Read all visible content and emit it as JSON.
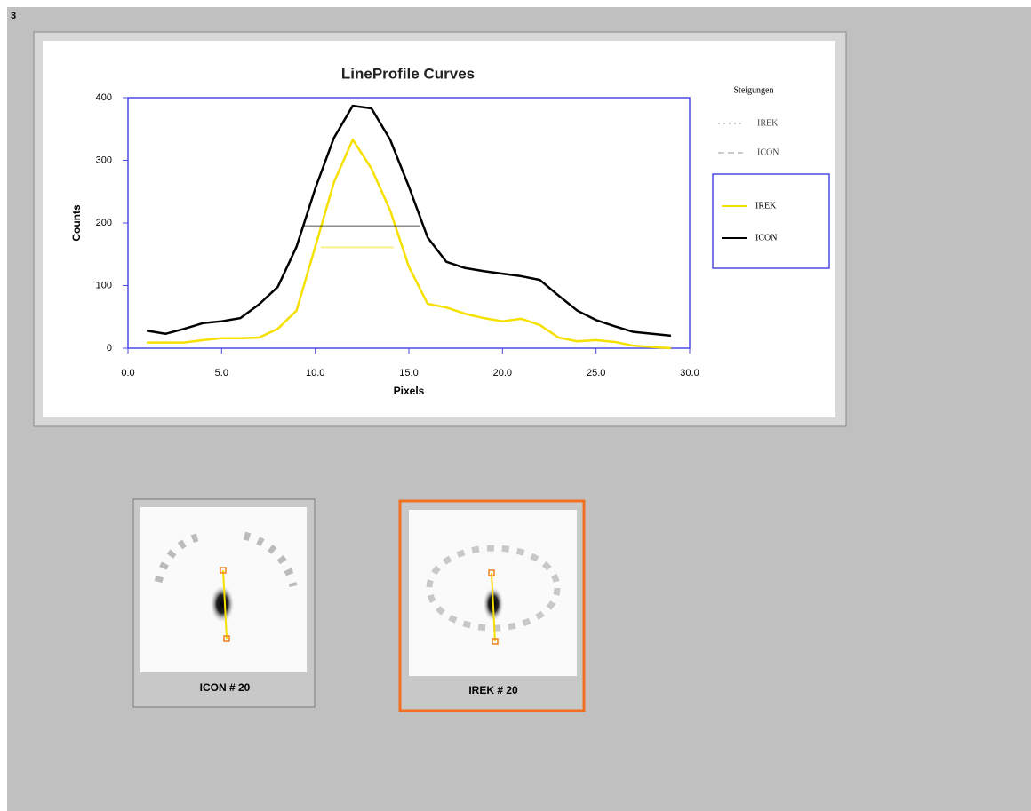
{
  "page_number": "3",
  "chart_data": {
    "type": "line",
    "title": "LineProfile Curves",
    "x_label": "Pixels",
    "y_label": "Counts",
    "x": [
      1,
      2,
      3,
      4,
      5,
      6,
      7,
      8,
      9,
      10,
      11,
      12,
      13,
      14,
      15,
      16,
      17,
      18,
      19,
      20,
      21,
      22,
      23,
      24,
      25,
      26,
      27,
      28,
      29
    ],
    "series": [
      {
        "name": "IREK",
        "color": "#f5e000",
        "values": [
          9,
          9,
          9,
          13,
          16,
          16,
          17,
          31,
          60,
          162,
          265,
          333,
          287,
          220,
          130,
          71,
          65,
          55,
          48,
          43,
          47,
          37,
          17,
          11,
          13,
          10,
          4,
          2,
          0
        ],
        "fwhm": {
          "value": 161,
          "x": [
            10.3,
            14.2
          ]
        }
      },
      {
        "name": "ICON",
        "color": "#000000",
        "values": [
          28,
          23,
          31,
          40,
          43,
          48,
          70,
          98,
          162,
          255,
          336,
          387,
          383,
          333,
          258,
          177,
          138,
          128,
          123,
          119,
          115,
          109,
          84,
          60,
          45,
          35,
          26,
          23,
          20
        ],
        "fwhm": {
          "value": 195,
          "x": [
            9.3,
            15.6
          ]
        }
      }
    ],
    "xlim": [
      0,
      30
    ],
    "ylim": [
      0,
      400
    ],
    "xticks": [
      {
        "value": 0,
        "label": "0.0"
      },
      {
        "value": 5,
        "label": "5.0"
      },
      {
        "value": 10,
        "label": "10.0"
      },
      {
        "value": 15,
        "label": "15.0"
      },
      {
        "value": 20,
        "label": "20.0"
      },
      {
        "value": 25,
        "label": "25.0"
      },
      {
        "value": 30,
        "label": "30.0"
      }
    ],
    "yticks": [
      0,
      100,
      200,
      300,
      400
    ],
    "frame_color": "#4a4ae0",
    "legend_title": "Steigungen",
    "fwhm_legend": [
      "IREK",
      "ICON"
    ]
  },
  "thumbnails": [
    {
      "label": "ICON # 20",
      "selected": false
    },
    {
      "label": "IREK # 20",
      "selected": true
    }
  ]
}
